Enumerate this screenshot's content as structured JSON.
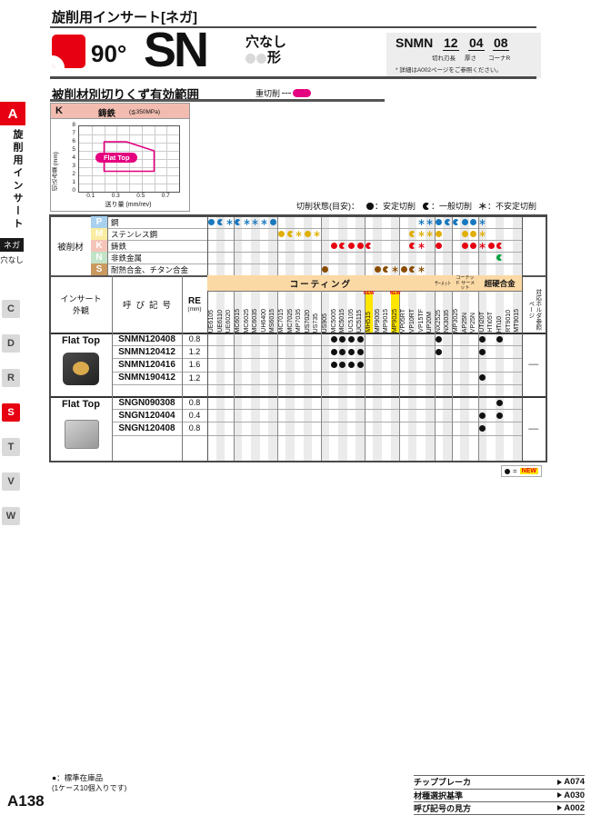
{
  "sidebar": {
    "index_letter": "A",
    "vertical_title": "旋削用インサート",
    "tab_nega": "ネガ",
    "tab_hole": "穴なし",
    "letter_tabs": [
      "C",
      "D",
      "R",
      "S",
      "T",
      "V",
      "W"
    ],
    "active_letter": "S"
  },
  "header": {
    "page_title": "旋削用インサート[ネガ]",
    "angle": "90°",
    "shape_code": "SN",
    "hole_type": "穴なし",
    "shape_suffix": "形",
    "spec_box": {
      "code": "SNMN",
      "seg1": "12",
      "seg2": "04",
      "seg3": "08",
      "seg1_label": "切れ刃長",
      "seg2_label": "厚さ",
      "seg3_label": "コーナR",
      "note": "* 詳細はA002ページをご参照ください。"
    }
  },
  "section": {
    "title": "被削材別切りくず有効範囲",
    "heavy_cut_label": "重切削"
  },
  "chart_data": {
    "type": "area",
    "material_code": "K",
    "material_name": "鋳鉄",
    "condition": "(≦350MPa)",
    "xlabel": "送り量 (mm/rev)",
    "ylabel": "切込み量 (mm)",
    "xlim": [
      0,
      0.8
    ],
    "ylim": [
      0,
      8
    ],
    "xtick_labels": [
      0.1,
      0.3,
      0.5,
      0.7
    ],
    "xgrid_step": 0.1,
    "ytick_labels": [
      0,
      1,
      2,
      3,
      4,
      5,
      6,
      7,
      8
    ],
    "region_label": "Flat Top",
    "region_polygon_x": [
      0.2,
      0.38,
      0.6,
      0.6,
      0.2
    ],
    "region_polygon_y": [
      6.1,
      6.1,
      5.0,
      2.5,
      2.5
    ],
    "region_color": "#e4007f"
  },
  "cut_legend": {
    "title": "切削状態(目安)：",
    "items": [
      {
        "type": "f",
        "label": "：安定切削"
      },
      {
        "type": "h",
        "label": "：一般切削"
      },
      {
        "type": "a",
        "label": "：不安定切削"
      }
    ]
  },
  "table": {
    "material_section_label": "被削材",
    "materials": [
      {
        "code": "P",
        "name": "鋼",
        "chip_color": "#a8d1f0",
        "symbol_color": "#1878be",
        "marks": {
          "1": "f",
          "2": "h",
          "3": "a",
          "4": "h",
          "5": "a",
          "6": "a",
          "7": "a",
          "8": "f",
          "25": "a",
          "26": "a",
          "27": "f",
          "28": "h",
          "29": "h",
          "30": "f",
          "31": "f",
          "32": "a"
        }
      },
      {
        "code": "M",
        "name": "ステンレス鋼",
        "chip_color": "#fbeda0",
        "symbol_color": "#dfae00",
        "marks": {
          "9": "f",
          "10": "h",
          "11": "a",
          "12": "f",
          "13": "a",
          "24": "h",
          "25": "a",
          "26": "a",
          "27": "f",
          "30": "f",
          "31": "f",
          "32": "a"
        }
      },
      {
        "code": "K",
        "name": "鋳鉄",
        "chip_color": "#f5c4b9",
        "symbol_color": "#e60012",
        "marks": {
          "15": "f",
          "16": "h",
          "17": "f",
          "18": "f",
          "19": "h",
          "24": "h",
          "25": "a",
          "27": "f",
          "30": "f",
          "31": "f",
          "32": "a",
          "33": "f",
          "34": "h"
        }
      },
      {
        "code": "N",
        "name": "非鉄金属",
        "chip_color": "#c2e3c8",
        "symbol_color": "#00a040",
        "marks": {
          "34": "h"
        }
      },
      {
        "code": "S",
        "name": "耐熱合金、チタン合金",
        "chip_color": "#c9995f",
        "symbol_color": "#8a4d00",
        "marks": {
          "14": "f",
          "20": "f",
          "21": "h",
          "22": "a",
          "23": "f",
          "24": "h",
          "25": "a"
        }
      }
    ],
    "grades": [
      {
        "name": "UE6105"
      },
      {
        "name": "UE6110"
      },
      {
        "name": "UE6020"
      },
      {
        "name": "MC6015"
      },
      {
        "name": "MC6025"
      },
      {
        "name": "MC6035"
      },
      {
        "name": "UH6400"
      },
      {
        "name": "MS6015"
      },
      {
        "name": "MC7015"
      },
      {
        "name": "MC7025"
      },
      {
        "name": "MP7035"
      },
      {
        "name": "US7020"
      },
      {
        "name": "US735"
      },
      {
        "name": "US905"
      },
      {
        "name": "MC5005"
      },
      {
        "name": "MC5015"
      },
      {
        "name": "UC5105"
      },
      {
        "name": "UC5115"
      },
      {
        "name": "MH515",
        "new": true
      },
      {
        "name": "MP9005"
      },
      {
        "name": "MP9015"
      },
      {
        "name": "MP9025",
        "new": true
      },
      {
        "name": "VP05RT"
      },
      {
        "name": "VP10RT"
      },
      {
        "name": "VP15TF"
      },
      {
        "name": "UP20M"
      },
      {
        "name": "NX2525"
      },
      {
        "name": "NX3035"
      },
      {
        "name": "MP3025"
      },
      {
        "name": "AP25N"
      },
      {
        "name": "VP25N"
      },
      {
        "name": "UTi20T"
      },
      {
        "name": "HTi05T"
      },
      {
        "name": "HTi10"
      },
      {
        "name": "RT9010"
      },
      {
        "name": "MT9015"
      }
    ],
    "groups": [
      {
        "label": "コーティング",
        "from": 1,
        "to": 26
      },
      {
        "label": "サーメット",
        "from": 27,
        "to": 28
      },
      {
        "label": "コーテッド サーメット",
        "from": 29,
        "to": 31
      },
      {
        "label": "超硬合金",
        "from": 32,
        "to": 36
      }
    ],
    "dividers_after": [
      3,
      8,
      13,
      18,
      22,
      26,
      28,
      31
    ],
    "appearance_header": "インサート外観",
    "designation_header": "呼び記号",
    "re_header": "RE",
    "re_unit": "(mm)",
    "holder_header": "対応ホルダ参照ページ",
    "row_groups": [
      {
        "shape_label": "Flat Top",
        "insert_style": "coated",
        "holder_ref": "—",
        "rows": [
          {
            "name": "SNMN120408",
            "re": "0.8",
            "marks": {
              "15": "f",
              "16": "f",
              "17": "f",
              "18": "f",
              "27": "f",
              "32": "f",
              "34": "f"
            }
          },
          {
            "name": "SNMN120412",
            "re": "1.2",
            "marks": {
              "15": "f",
              "16": "f",
              "17": "f",
              "18": "f",
              "27": "f",
              "32": "f"
            }
          },
          {
            "name": "SNMN120416",
            "re": "1.6",
            "marks": {
              "15": "f",
              "16": "f",
              "17": "f",
              "18": "f"
            }
          },
          {
            "name": "SNMN190412",
            "re": "1.2",
            "marks": {
              "32": "f"
            }
          }
        ]
      },
      {
        "shape_label": "Flat Top",
        "insert_style": "plain",
        "holder_ref": "—",
        "rows": [
          {
            "name": "SNGN090308",
            "re": "0.8",
            "marks": {
              "34": "f"
            }
          },
          {
            "name": "SNGN120404",
            "re": "0.4",
            "marks": {
              "32": "f",
              "34": "f"
            }
          },
          {
            "name": "SNGN120408",
            "re": "0.8",
            "marks": {
              "32": "f"
            }
          }
        ]
      }
    ],
    "body_mark_color": "#111111"
  },
  "new_legend": {
    "symbol": "●",
    "eq": "=",
    "label": "NEW"
  },
  "footer": {
    "stock_note_line1": "●：標準在庫品",
    "stock_note_line2": "(1ケース10個入りです)",
    "page_number": "A138",
    "links": [
      {
        "label": "チップブレーカ",
        "page": "A074"
      },
      {
        "label": "材種選択基準",
        "page": "A030"
      },
      {
        "label": "呼び記号の見方",
        "page": "A002"
      }
    ]
  },
  "colors": {
    "accent_red": "#e60012",
    "magenta": "#e4007f",
    "band_orange": "#fbd9a5",
    "new_yellow": "#ffe600",
    "stripe": "#ebebeb"
  }
}
